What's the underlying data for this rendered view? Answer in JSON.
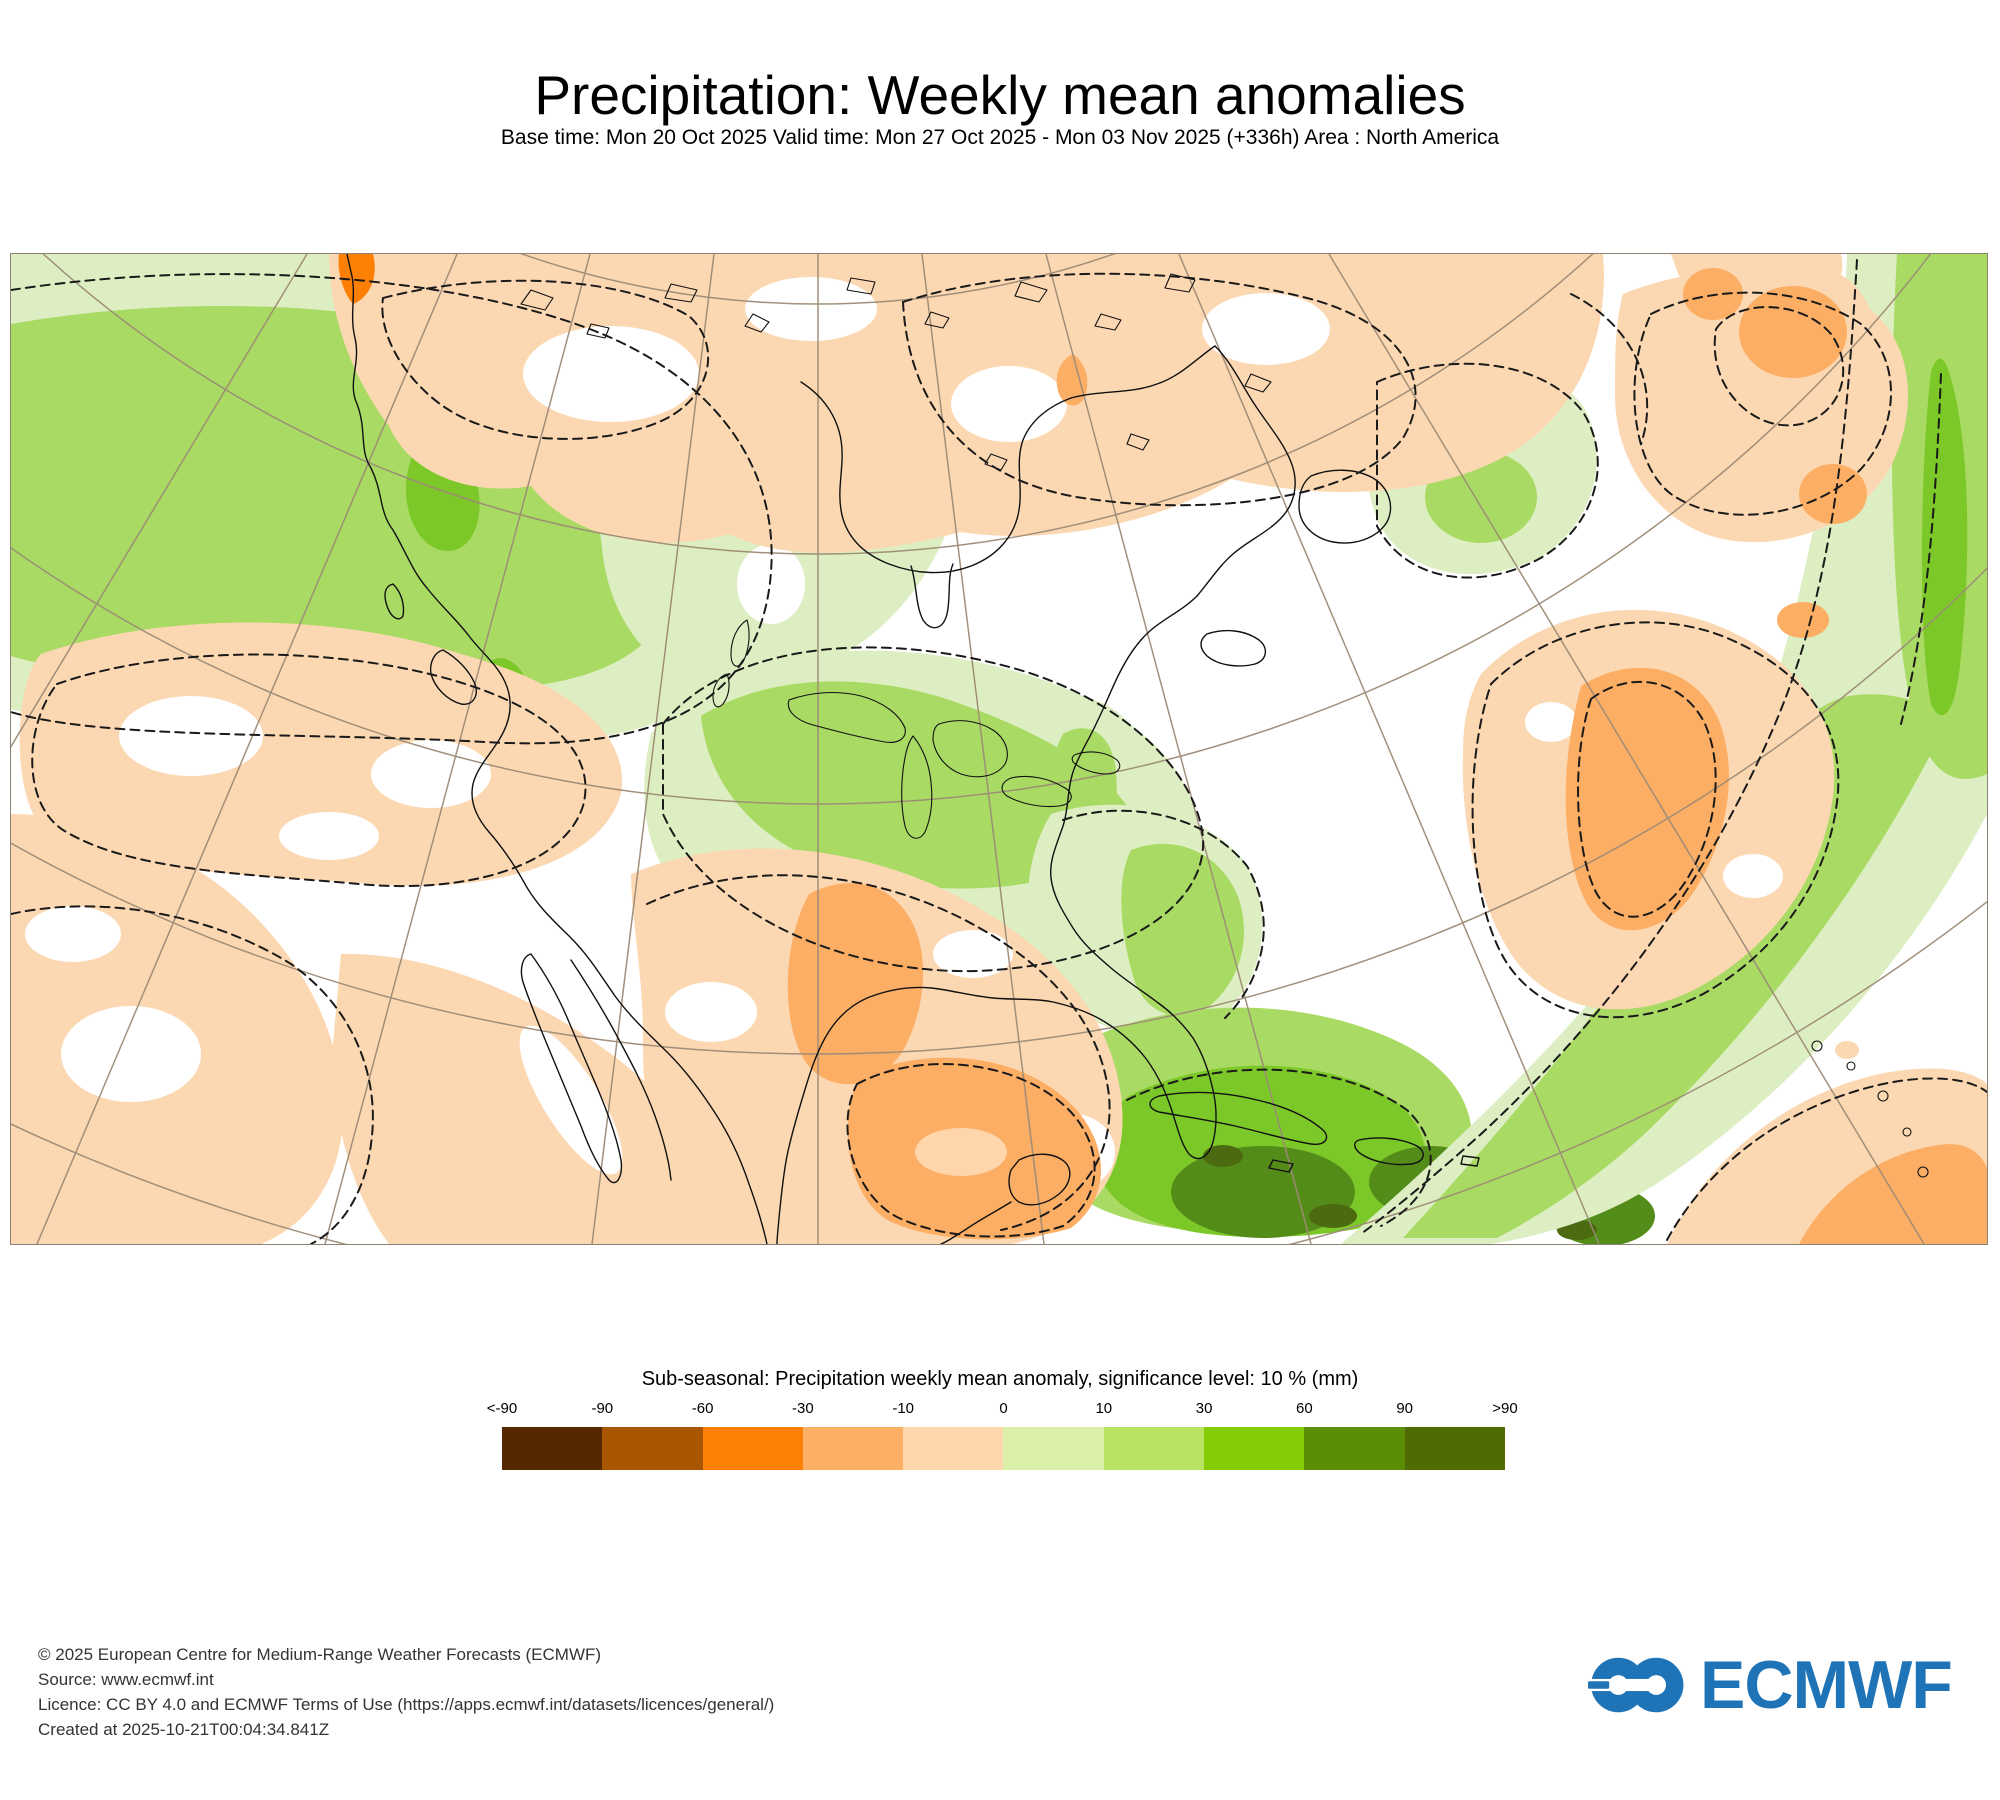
{
  "header": {
    "title": "Precipitation: Weekly mean anomalies",
    "subtitle": "Base time: Mon 20 Oct 2025 Valid time: Mon 27 Oct 2025 - Mon 03 Nov 2025 (+336h) Area : North America"
  },
  "map": {
    "area": "North America",
    "frame_color": "#8b8274",
    "graticule_color": "#9d8b76",
    "coastline_color": "#111111",
    "contour_style": "black dashed significance contours",
    "anomaly_regions": {
      "wet_green": [
        "Northeast Pacific and British Columbia coast",
        "Central Canada, Great Lakes and eastern North America",
        "Florida, Caribbean and Gulf Stream band",
        "Band along eastern Atlantic edge of map"
      ],
      "dry_orange": [
        "Alaska-Yukon, Hudson Bay and Arctic Canada",
        "Southwestern United States and Mexico",
        "Texas and western Gulf of Mexico",
        "Central North Atlantic",
        "Subtropical Atlantic (southeast corner)"
      ]
    }
  },
  "legend": {
    "title": "Sub-seasonal: Precipitation weekly mean anomaly, significance level: 10 % (mm)",
    "units": "mm",
    "significance_level": "10 %",
    "tick_labels": [
      "<-90",
      "-90",
      "-60",
      "-30",
      "-10",
      "0",
      "10",
      "30",
      "60",
      "90",
      ">90"
    ],
    "colors": [
      "#552800",
      "#aa5500",
      "#fd8004",
      "#fdb065",
      "#ffd5ab",
      "#daf0a8",
      "#b9e361",
      "#85cb05",
      "#5a8f05",
      "#4e6c03"
    ]
  },
  "footer": {
    "lines": [
      "© 2025 European Centre for Medium-Range Weather Forecasts (ECMWF)",
      "Source: www.ecmwf.int",
      "Licence: CC BY 4.0 and ECMWF Terms of Use (https://apps.ecmwf.int/datasets/licences/general/)",
      "Created at 2025-10-21T00:04:34.841Z"
    ]
  },
  "branding": {
    "logo_text": "ECMWF",
    "logo_color": "#1f74b8"
  }
}
